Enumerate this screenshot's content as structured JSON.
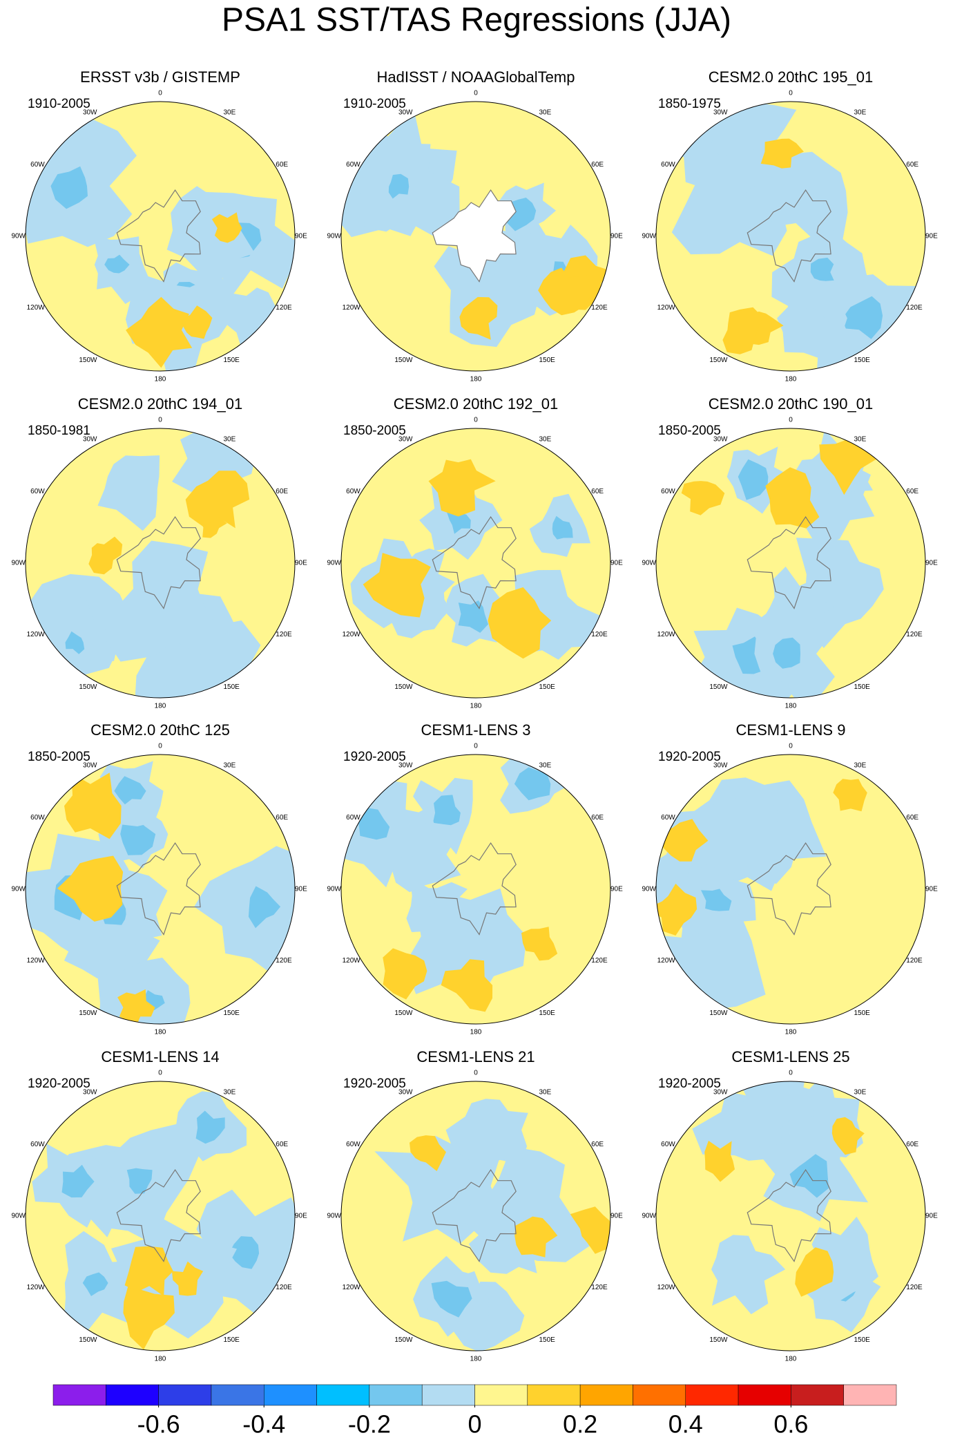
{
  "title": "PSA1 SST/TAS Regressions (JJA)",
  "longitude_labels": [
    "0",
    "30E",
    "60E",
    "90E",
    "120E",
    "150E",
    "180",
    "150W",
    "120W",
    "90W",
    "60W",
    "30W"
  ],
  "panels": [
    {
      "title": "ERSST v3b / GISTEMP",
      "period": "1910-2005"
    },
    {
      "title": "HadISST / NOAAGlobalTemp",
      "period": "1910-2005"
    },
    {
      "title": "CESM2.0 20thC 195_01",
      "period": "1850-1975"
    },
    {
      "title": "CESM2.0 20thC 194_01",
      "period": "1850-1981"
    },
    {
      "title": "CESM2.0 20thC 192_01",
      "period": "1850-2005"
    },
    {
      "title": "CESM2.0 20thC 190_01",
      "period": "1850-2005"
    },
    {
      "title": "CESM2.0 20thC 125",
      "period": "1850-2005"
    },
    {
      "title": "CESM1-LENS 3",
      "period": "1920-2005"
    },
    {
      "title": "CESM1-LENS 9",
      "period": "1920-2005"
    },
    {
      "title": "CESM1-LENS 14",
      "period": "1920-2005"
    },
    {
      "title": "CESM1-LENS 21",
      "period": "1920-2005"
    },
    {
      "title": "CESM1-LENS 25",
      "period": "1920-2005"
    }
  ],
  "colorbar": {
    "colors": [
      "#8c1eeb",
      "#1e00ff",
      "#2d3ee8",
      "#3a75e6",
      "#1e90ff",
      "#00bfff",
      "#74c7ee",
      "#b3dcf2",
      "#fff68f",
      "#ffd22d",
      "#ffa500",
      "#ff7000",
      "#ff2800",
      "#e60000",
      "#c81e1e",
      "#ffb4b4"
    ],
    "lim": [
      -0.8,
      0.8
    ],
    "ticks": [
      -0.6,
      -0.4,
      -0.2,
      0,
      0.2,
      0.4,
      0.6
    ]
  }
}
